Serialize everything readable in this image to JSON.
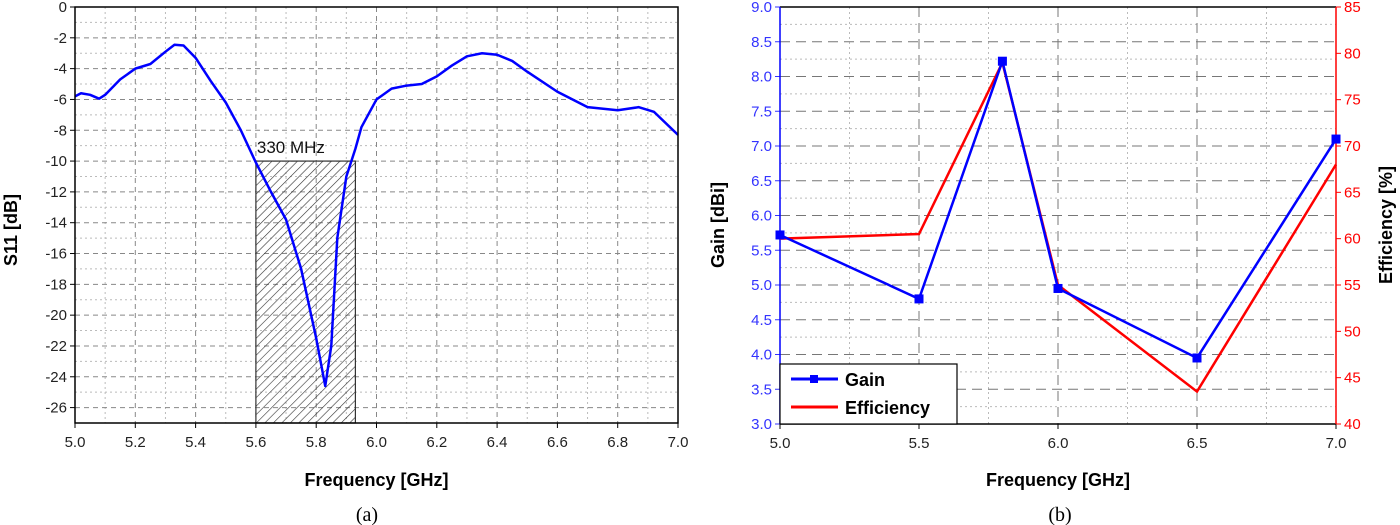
{
  "chart_data": [
    {
      "type": "line",
      "caption": "(a)",
      "xlabel": "Frequency [GHz]",
      "ylabel": "S11 [dB]",
      "xlim": [
        5.0,
        7.0
      ],
      "ylim": [
        -27,
        0
      ],
      "xticks": [
        "5.0",
        "5.2",
        "5.4",
        "5.6",
        "5.8",
        "6.0",
        "6.2",
        "6.4",
        "6.6",
        "6.8",
        "7.0"
      ],
      "yticks": [
        "0",
        "-2",
        "-4",
        "-6",
        "-8",
        "-10",
        "-12",
        "-14",
        "-16",
        "-18",
        "-20",
        "-22",
        "-24",
        "-26"
      ],
      "grid": true,
      "color": "#0000ff",
      "annotation": {
        "text": "330 MHz",
        "band": [
          5.6,
          5.93
        ],
        "level": -10
      },
      "series": [
        {
          "x": [
            5.0,
            5.02,
            5.05,
            5.08,
            5.1,
            5.15,
            5.2,
            5.25,
            5.3,
            5.33,
            5.36,
            5.4,
            5.45,
            5.5,
            5.55,
            5.6,
            5.65,
            5.7,
            5.75,
            5.8,
            5.83,
            5.85,
            5.87,
            5.9,
            5.93,
            5.95,
            6.0,
            6.05,
            6.1,
            6.15,
            6.2,
            6.25,
            6.3,
            6.35,
            6.4,
            6.45,
            6.5,
            6.6,
            6.7,
            6.8,
            6.87,
            6.92,
            7.0
          ],
          "y": [
            -5.8,
            -5.6,
            -5.7,
            -5.95,
            -5.7,
            -4.7,
            -4.0,
            -3.7,
            -2.9,
            -2.45,
            -2.5,
            -3.3,
            -4.8,
            -6.2,
            -8.0,
            -10.1,
            -12.0,
            -13.8,
            -17.0,
            -21.5,
            -24.6,
            -22.0,
            -15.0,
            -11.0,
            -9.2,
            -7.8,
            -6.0,
            -5.3,
            -5.1,
            -5.0,
            -4.5,
            -3.8,
            -3.2,
            -3.0,
            -3.1,
            -3.5,
            -4.2,
            -5.5,
            -6.5,
            -6.7,
            -6.5,
            -6.8,
            -8.3
          ]
        }
      ]
    },
    {
      "type": "line",
      "caption": "(b)",
      "xlabel": "Frequency [GHz]",
      "ylabel": "Gain [dBi]",
      "y2label": "Efficiency [%]",
      "xlim": [
        5.0,
        7.0
      ],
      "ylim": [
        3.0,
        9.0
      ],
      "y2lim": [
        40,
        85
      ],
      "xticks": [
        "5.0",
        "5.5",
        "6.0",
        "6.5",
        "7.0"
      ],
      "yticks": [
        "3.0",
        "3.5",
        "4.0",
        "4.5",
        "5.0",
        "5.5",
        "6.0",
        "6.5",
        "7.0",
        "7.5",
        "8.0",
        "8.5",
        "9.0"
      ],
      "y2ticks": [
        "40",
        "45",
        "50",
        "55",
        "60",
        "65",
        "70",
        "75",
        "80",
        "85"
      ],
      "grid": true,
      "legend": "bottom-left",
      "x": [
        5.0,
        5.5,
        5.8,
        6.0,
        6.5,
        7.0
      ],
      "series": [
        {
          "name": "Gain",
          "axis": "left",
          "color": "#0000ff",
          "marker": "square",
          "values": [
            5.72,
            4.8,
            8.22,
            4.95,
            3.95,
            7.1
          ]
        },
        {
          "name": "Efficiency",
          "axis": "right",
          "color": "#ff0000",
          "values": [
            60,
            60.5,
            79,
            55,
            43.5,
            68
          ]
        }
      ]
    }
  ]
}
